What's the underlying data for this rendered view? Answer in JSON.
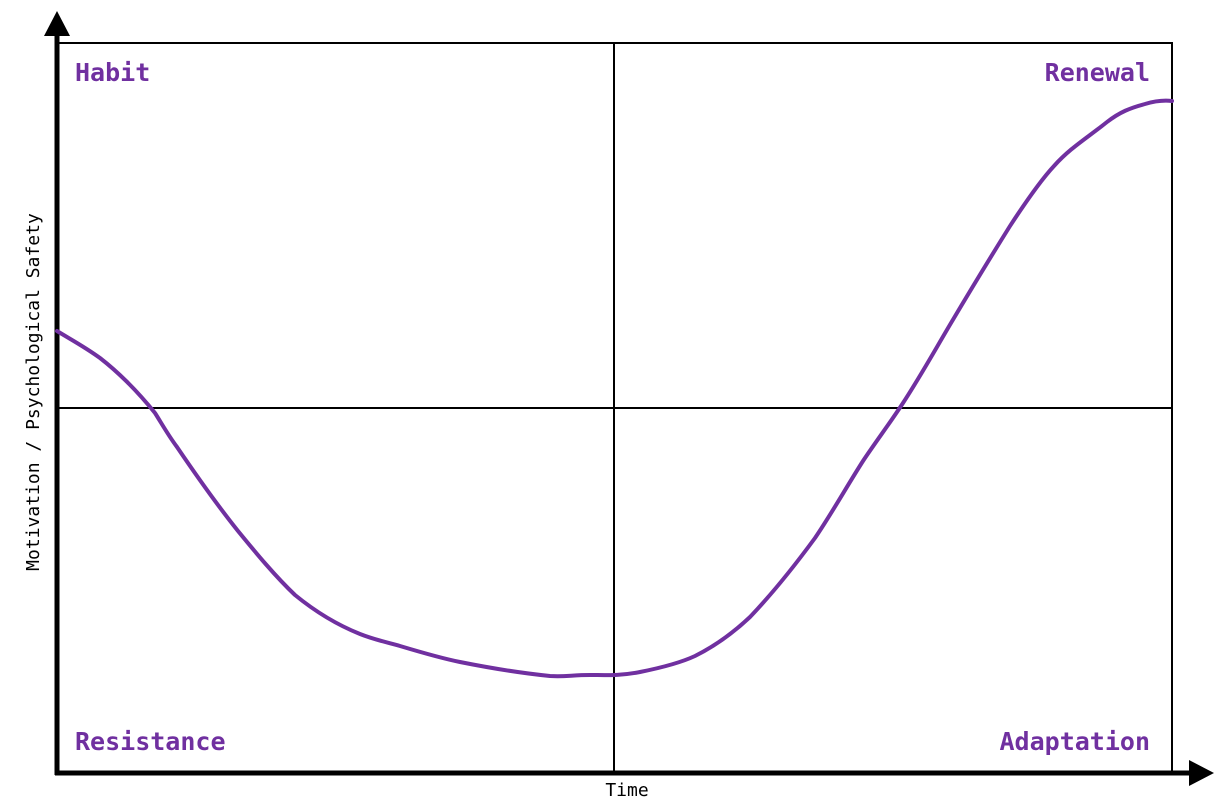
{
  "diagram": {
    "x_axis_label": "Time",
    "y_axis_label": "Motivation / Psychological Safety",
    "quadrants": {
      "top_left": "Habit",
      "top_right": "Renewal",
      "bottom_left": "Resistance",
      "bottom_right": "Adaptation"
    },
    "colors": {
      "accent": "#7030a0",
      "axis": "#000000",
      "grid": "#000000",
      "background": "#ffffff"
    }
  }
}
